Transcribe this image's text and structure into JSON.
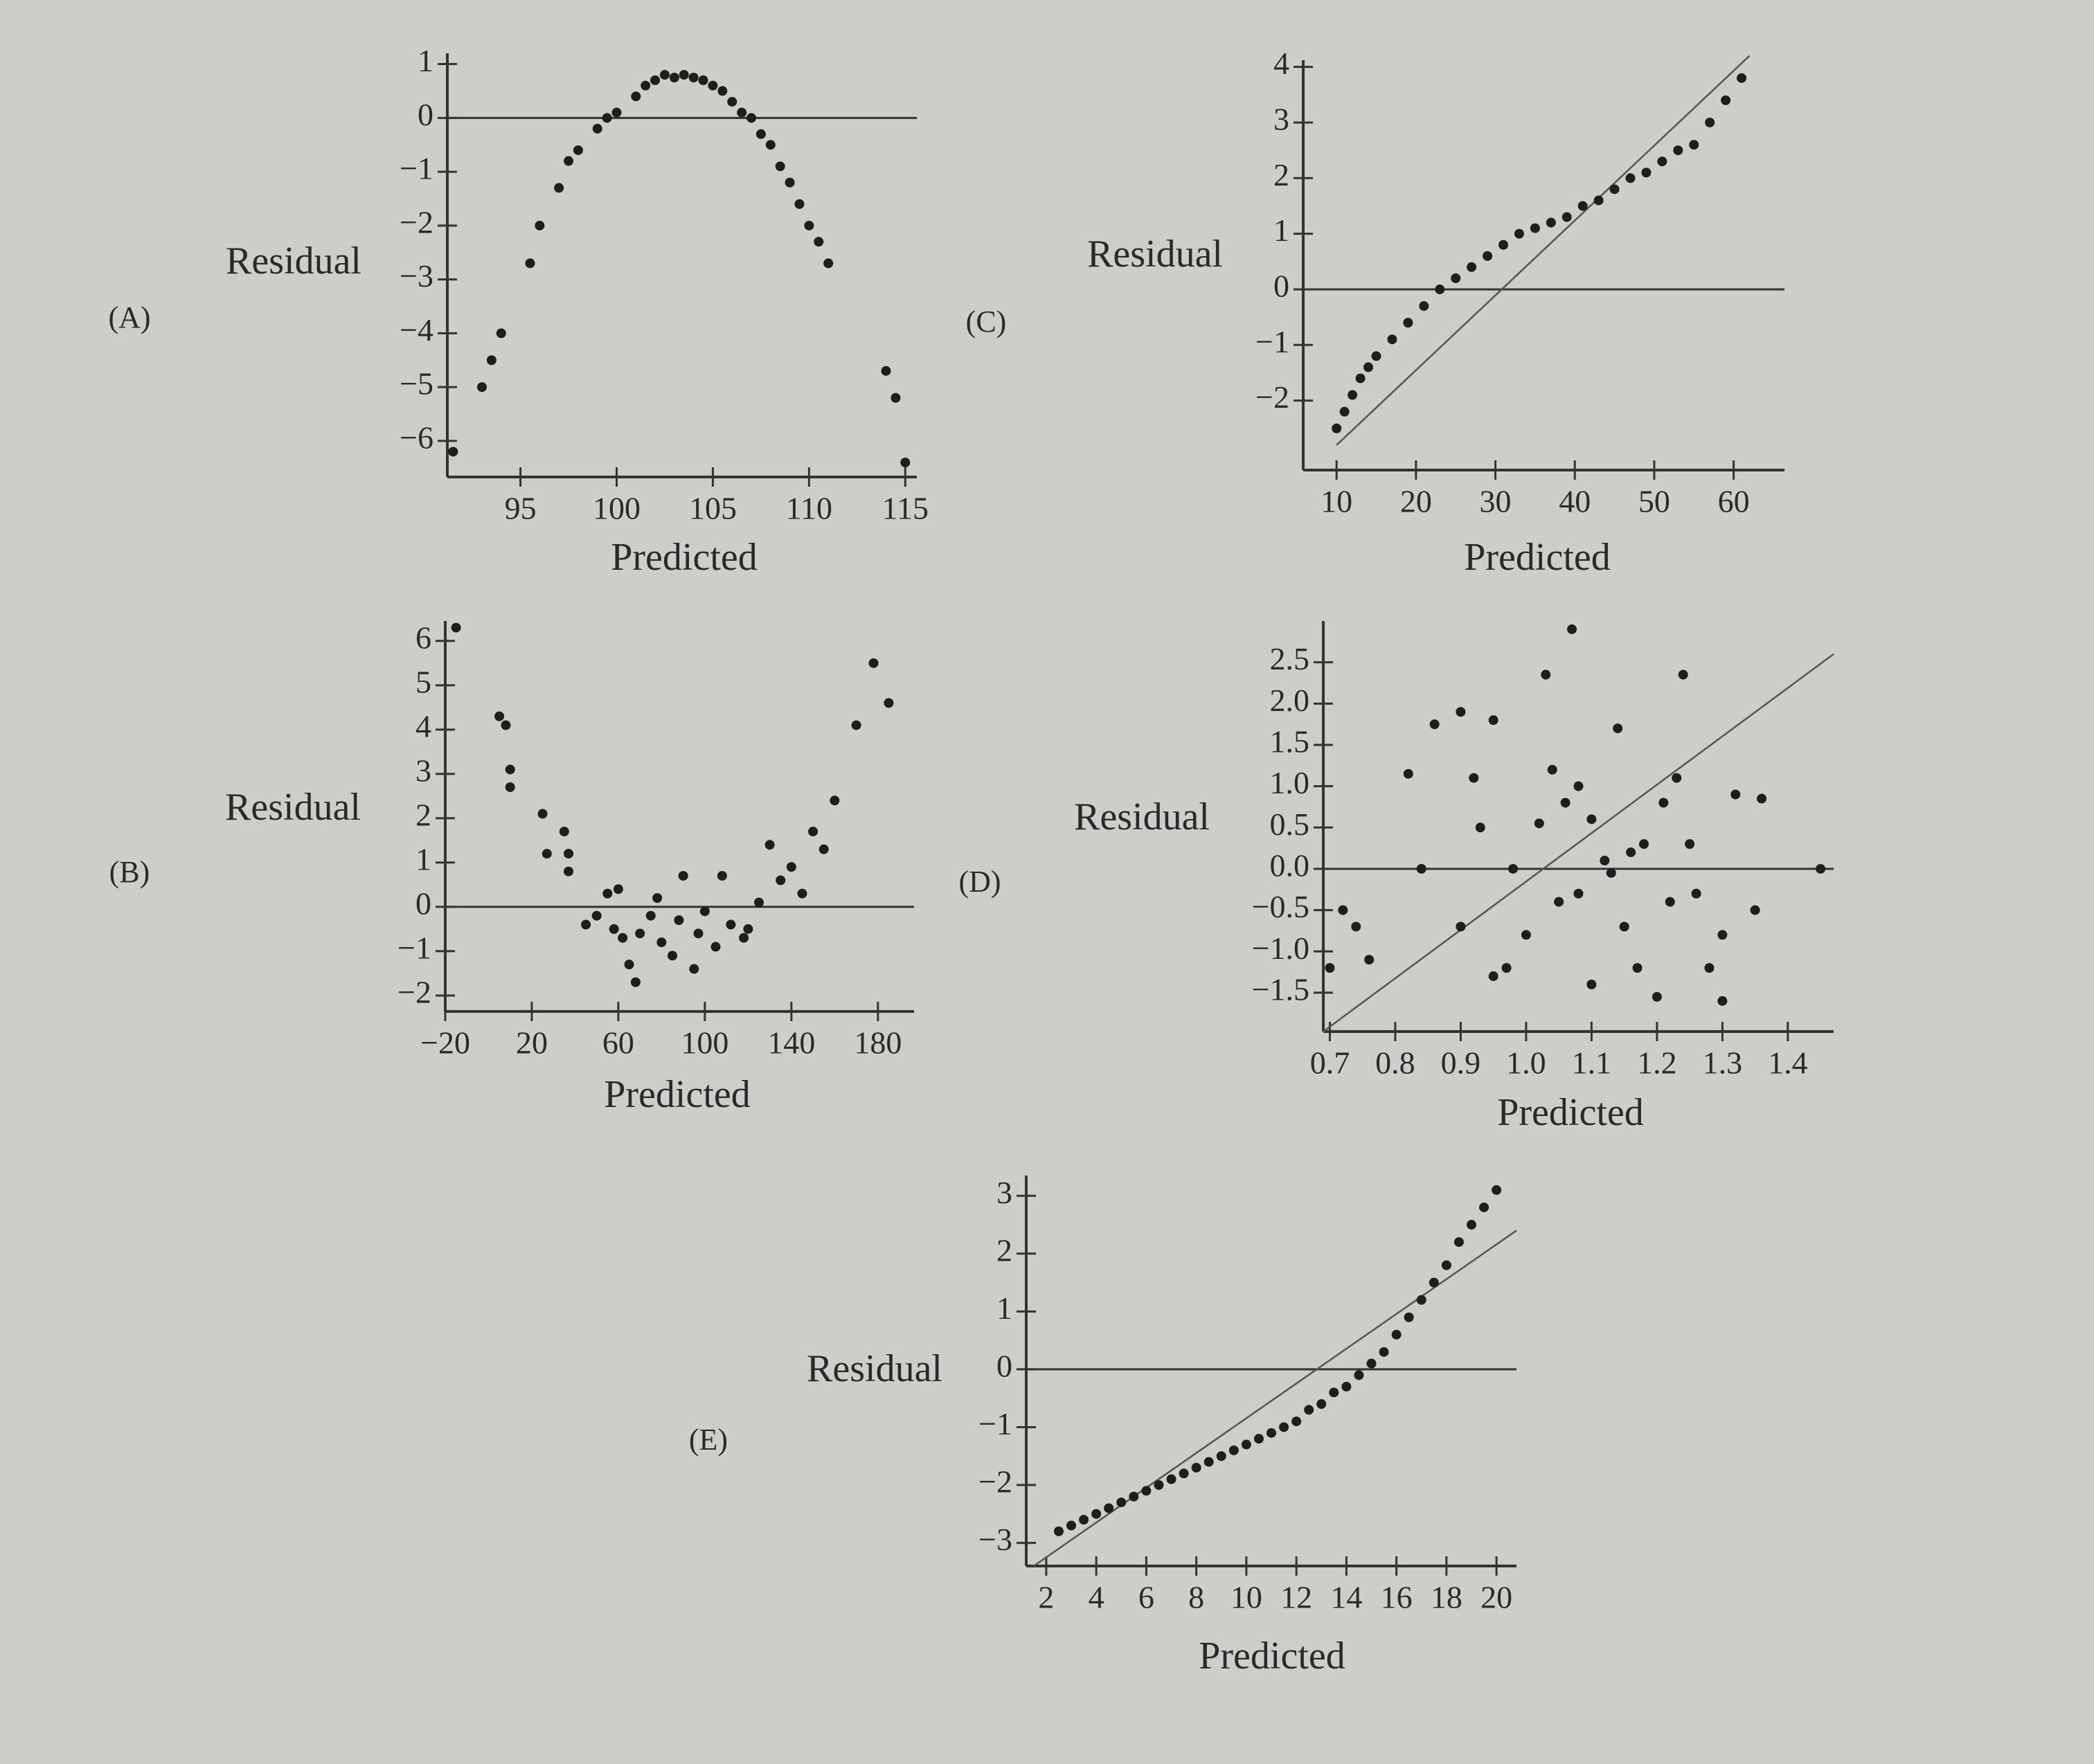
{
  "chart_data": [
    {
      "type": "scatter",
      "panel_label": "(A)",
      "ylabel": "Residual",
      "xlabel": "Predicted",
      "x": [
        91.5,
        93,
        93.5,
        94,
        95.5,
        96,
        97,
        97.5,
        98,
        99,
        99.5,
        100,
        101,
        101.5,
        102,
        102.5,
        103,
        103.5,
        104,
        104.5,
        105,
        105.5,
        106,
        106.5,
        107,
        107.5,
        108,
        108.5,
        109,
        109.5,
        110,
        110.5,
        111,
        114,
        114.5,
        115
      ],
      "values": [
        -6.2,
        -5,
        -4.5,
        -4,
        -2.7,
        -2,
        -1.3,
        -0.8,
        -0.6,
        -0.2,
        0,
        0.1,
        0.4,
        0.6,
        0.7,
        0.8,
        0.75,
        0.8,
        0.75,
        0.7,
        0.6,
        0.5,
        0.3,
        0.1,
        0,
        -0.3,
        -0.5,
        -0.9,
        -1.2,
        -1.6,
        -2,
        -2.3,
        -2.7,
        -4.7,
        -5.2,
        -6.4
      ],
      "xlim": [
        91.2,
        115.6
      ],
      "ylim": [
        -6.67,
        1.2
      ],
      "xticks": [
        95,
        100,
        105,
        110,
        115
      ],
      "yticks": [
        1,
        0,
        {
          "value": -1,
          "label": "−1"
        },
        {
          "value": -2,
          "label": "−2"
        },
        {
          "value": -3,
          "label": "−3"
        },
        {
          "value": -4,
          "label": "−4"
        },
        {
          "value": -5,
          "label": "−5"
        },
        {
          "value": -6,
          "label": "−6"
        }
      ],
      "color": "#1e1e1e"
    },
    {
      "type": "scatter",
      "panel_label": "(C)",
      "ylabel": "Residual",
      "xlabel": "Predicted",
      "x": [
        10,
        11,
        12,
        13,
        14,
        15,
        17,
        19,
        21,
        23,
        25,
        27,
        29,
        31,
        33,
        35,
        37,
        39,
        41,
        43,
        45,
        47,
        49,
        51,
        53,
        55,
        57,
        59,
        61
      ],
      "values": [
        -2.5,
        -2.2,
        -1.9,
        -1.6,
        -1.4,
        -1.2,
        -0.9,
        -0.6,
        -0.3,
        0,
        0.2,
        0.4,
        0.6,
        0.8,
        1,
        1.1,
        1.2,
        1.3,
        1.5,
        1.6,
        1.8,
        2,
        2.1,
        2.3,
        2.5,
        2.6,
        3,
        3.4,
        3.8
      ],
      "xlim": [
        5.8,
        66.4
      ],
      "ylim": [
        -3.25,
        4.12
      ],
      "xticks": [
        10,
        20,
        30,
        40,
        50,
        60
      ],
      "yticks": [
        4,
        3,
        2,
        1,
        0,
        {
          "value": -1,
          "label": "−1"
        },
        {
          "value": -2,
          "label": "−2"
        }
      ],
      "reference_line": {
        "x": [
          10,
          62
        ],
        "values": [
          -2.8,
          4.2
        ]
      },
      "color": "#1e1e1e"
    },
    {
      "type": "scatter",
      "panel_label": "(B)",
      "ylabel": "Residual",
      "xlabel": "Predicted",
      "x": [
        -15,
        5,
        8,
        10,
        10,
        25,
        27,
        35,
        37,
        37,
        45,
        50,
        55,
        60,
        58,
        62,
        65,
        68,
        70,
        75,
        78,
        80,
        85,
        88,
        90,
        95,
        97,
        100,
        105,
        108,
        112,
        118,
        120,
        125,
        130,
        135,
        140,
        145,
        150,
        155,
        160,
        170,
        178,
        185
      ],
      "values": [
        6.3,
        4.3,
        4.1,
        3.1,
        2.7,
        2.1,
        1.2,
        1.7,
        1.2,
        0.8,
        -0.4,
        -0.2,
        0.3,
        0.4,
        -0.5,
        -0.7,
        -1.3,
        -1.7,
        -0.6,
        -0.2,
        0.2,
        -0.8,
        -1.1,
        -0.3,
        0.7,
        -1.4,
        -0.6,
        -0.1,
        -0.9,
        0.7,
        -0.4,
        -0.7,
        -0.5,
        0.1,
        1.4,
        0.6,
        0.9,
        0.3,
        1.7,
        1.3,
        2.4,
        4.1,
        5.5,
        4.6
      ],
      "xlim": [
        -20,
        196.7
      ],
      "ylim": [
        -2.36,
        6.45
      ],
      "xticks": [
        {
          "value": -20,
          "label": "−20"
        },
        20,
        60,
        100,
        140,
        180
      ],
      "yticks": [
        6,
        5,
        4,
        3,
        2,
        1,
        0,
        {
          "value": -1,
          "label": "−1"
        },
        {
          "value": -2,
          "label": "−2"
        }
      ],
      "color": "#1e1e1e"
    },
    {
      "type": "scatter",
      "panel_label": "(D)",
      "ylabel": "Residual",
      "xlabel": "Predicted",
      "x": [
        0.7,
        0.72,
        0.74,
        0.76,
        0.82,
        0.84,
        0.86,
        0.9,
        0.9,
        0.92,
        0.93,
        0.95,
        0.95,
        0.97,
        0.98,
        1.0,
        1.02,
        1.03,
        1.04,
        1.05,
        1.06,
        1.07,
        1.08,
        1.08,
        1.1,
        1.1,
        1.12,
        1.13,
        1.14,
        1.15,
        1.16,
        1.17,
        1.18,
        1.2,
        1.21,
        1.22,
        1.23,
        1.24,
        1.25,
        1.26,
        1.28,
        1.3,
        1.3,
        1.32,
        1.36,
        1.35,
        1.45
      ],
      "values": [
        -1.2,
        -0.5,
        -0.7,
        -1.1,
        1.15,
        0.0,
        1.75,
        -0.7,
        1.9,
        1.1,
        0.5,
        1.8,
        -1.3,
        -1.2,
        0.0,
        -0.8,
        0.55,
        2.35,
        1.2,
        -0.4,
        0.8,
        2.9,
        -0.3,
        1.0,
        0.6,
        -1.4,
        0.1,
        -0.05,
        1.7,
        -0.7,
        0.2,
        -1.2,
        0.3,
        -1.55,
        0.8,
        -0.4,
        1.1,
        2.35,
        0.3,
        -0.3,
        -1.2,
        -0.8,
        -1.6,
        0.9,
        0.85,
        -0.5,
        0.0
      ],
      "xlim": [
        0.69,
        1.47
      ],
      "ylim": [
        -1.97,
        3.0
      ],
      "xticks": [
        0.7,
        0.8,
        0.9,
        {
          "value": 1.0,
          "label": "1.0"
        },
        1.1,
        1.2,
        1.3,
        1.4
      ],
      "yticks": [
        2.5,
        {
          "value": 2.0,
          "label": "2.0"
        },
        1.5,
        {
          "value": 1.0,
          "label": "1.0"
        },
        0.5,
        {
          "value": 0.0,
          "label": "0.0"
        },
        {
          "value": -0.5,
          "label": "−0.5"
        },
        {
          "value": -1.0,
          "label": "−1.0"
        },
        {
          "value": -1.5,
          "label": "−1.5"
        }
      ],
      "reference_line": {
        "x": [
          0.69,
          1.47
        ],
        "values": [
          -1.97,
          2.6
        ]
      },
      "color": "#1e1e1e"
    },
    {
      "type": "scatter",
      "panel_label": "(E)",
      "ylabel": "Residual",
      "xlabel": "Predicted",
      "x": [
        2.5,
        3,
        3.5,
        4,
        4.5,
        5,
        5.5,
        6,
        6.5,
        7,
        7.5,
        8,
        8.5,
        9,
        9.5,
        10,
        10.5,
        11,
        11.5,
        12,
        12.5,
        13,
        13.5,
        14,
        14.5,
        15,
        15.5,
        16,
        16.5,
        17,
        17.5,
        18,
        18.5,
        19,
        19.5,
        20
      ],
      "values": [
        -2.8,
        -2.7,
        -2.6,
        -2.5,
        -2.4,
        -2.3,
        -2.2,
        -2.1,
        -2.0,
        -1.9,
        -1.8,
        -1.7,
        -1.6,
        -1.5,
        -1.4,
        -1.3,
        -1.2,
        -1.1,
        -1.0,
        -0.9,
        -0.7,
        -0.6,
        -0.4,
        -0.3,
        -0.1,
        0.1,
        0.3,
        0.6,
        0.9,
        1.2,
        1.5,
        1.8,
        2.2,
        2.5,
        2.8,
        3.1
      ],
      "xlim": [
        1.2,
        20.8
      ],
      "ylim": [
        -3.4,
        3.35
      ],
      "xticks": [
        2,
        4,
        6,
        8,
        10,
        12,
        14,
        16,
        18,
        20
      ],
      "yticks": [
        3,
        2,
        1,
        0,
        {
          "value": -1,
          "label": "−1"
        },
        {
          "value": -2,
          "label": "−2"
        },
        {
          "value": -3,
          "label": "−3"
        }
      ],
      "reference_line": {
        "x": [
          1.5,
          20.8
        ],
        "values": [
          -3.4,
          2.4
        ]
      },
      "color": "#1e1e1e"
    }
  ]
}
